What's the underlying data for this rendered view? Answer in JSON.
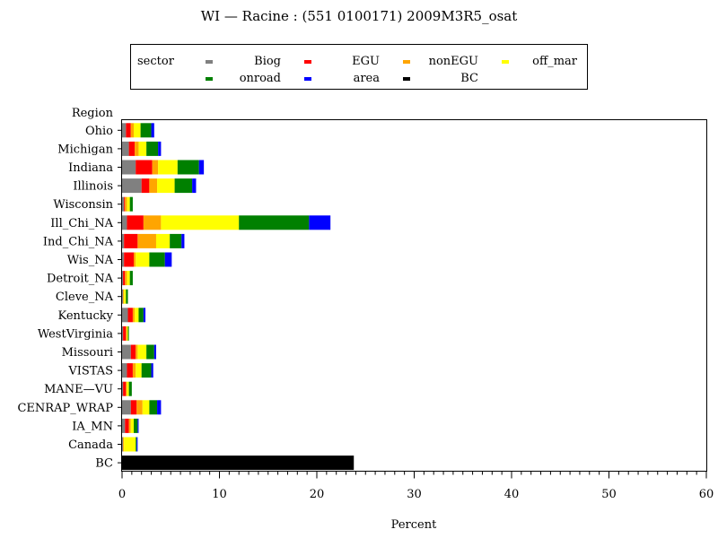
{
  "chart_data": {
    "type": "bar",
    "orientation": "horizontal",
    "stacked": true,
    "title": "WI — Racine : (551 0100171) 2009M3R5_osat",
    "xlabel": "Percent",
    "ylabel": "Region",
    "xlim": [
      0,
      60
    ],
    "x_ticks": [
      0,
      10,
      20,
      30,
      40,
      50,
      60
    ],
    "grid": false,
    "legend_position": "top",
    "legend_title": "sector",
    "categories": [
      "Ohio",
      "Michigan",
      "Indiana",
      "Illinois",
      "Wisconsin",
      "Ill_Chi_NA",
      "Ind_Chi_NA",
      "Wis_NA",
      "Detroit_NA",
      "Cleve_NA",
      "Kentucky",
      "WestVirginia",
      "Missouri",
      "VISTAS",
      "MANE—VU",
      "CENRAP_WRAP",
      "IA_MN",
      "Canada",
      "BC"
    ],
    "series": [
      {
        "name": "Biog",
        "color": "#808080",
        "values": [
          0.4,
          0.7,
          1.4,
          2.0,
          0.2,
          0.5,
          0.2,
          0.2,
          0.1,
          0.1,
          0.6,
          0.1,
          0.9,
          0.5,
          0.1,
          0.9,
          0.3,
          0.1,
          0
        ]
      },
      {
        "name": "EGU",
        "color": "#ff0000",
        "values": [
          0.5,
          0.6,
          1.7,
          0.8,
          0.1,
          1.7,
          1.4,
          1.0,
          0.2,
          0.0,
          0.5,
          0.3,
          0.5,
          0.6,
          0.3,
          0.6,
          0.4,
          0.0,
          0
        ]
      },
      {
        "name": "nonEGU",
        "color": "#ffa500",
        "values": [
          0.3,
          0.4,
          0.6,
          0.8,
          0.2,
          1.8,
          1.9,
          0.2,
          0.2,
          0.1,
          0.2,
          0.1,
          0.2,
          0.3,
          0.1,
          0.6,
          0.2,
          0.1,
          0
        ]
      },
      {
        "name": "off_mar",
        "color": "#ffff00",
        "values": [
          0.7,
          0.8,
          2.0,
          1.8,
          0.3,
          8.0,
          1.4,
          1.4,
          0.3,
          0.2,
          0.4,
          0.1,
          0.9,
          0.6,
          0.2,
          0.7,
          0.3,
          1.2,
          0
        ]
      },
      {
        "name": "onroad",
        "color": "#008000",
        "values": [
          1.1,
          1.2,
          2.2,
          1.8,
          0.3,
          7.2,
          1.2,
          1.6,
          0.3,
          0.2,
          0.5,
          0.1,
          0.8,
          1.0,
          0.3,
          0.8,
          0.4,
          0.1,
          0
        ]
      },
      {
        "name": "area",
        "color": "#0000ff",
        "values": [
          0.3,
          0.3,
          0.5,
          0.4,
          0.0,
          2.2,
          0.3,
          0.7,
          0.0,
          0.0,
          0.2,
          0.0,
          0.2,
          0.2,
          0.0,
          0.4,
          0.1,
          0.1,
          0
        ]
      },
      {
        "name": "BC",
        "color": "#000000",
        "values": [
          0,
          0,
          0,
          0,
          0,
          0,
          0,
          0,
          0,
          0,
          0,
          0,
          0,
          0,
          0,
          0,
          0,
          0,
          23.8
        ]
      }
    ]
  }
}
